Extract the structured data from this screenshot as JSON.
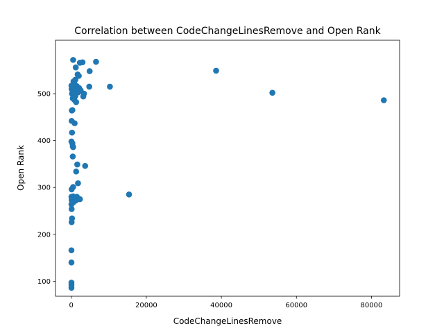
{
  "chart_data": {
    "type": "scatter",
    "title": "Correlation between CodeChangeLinesRemove and Open Rank",
    "xlabel": "CodeChangeLinesRemove",
    "ylabel": "Open Rank",
    "xlim": [
      -4200,
      87500
    ],
    "ylim": [
      68,
      614
    ],
    "xticks": [
      0,
      20000,
      40000,
      60000,
      80000
    ],
    "yticks": [
      100,
      200,
      300,
      400,
      500
    ],
    "grid": false,
    "marker_color": "#1f77b4",
    "points": [
      {
        "x": 500,
        "y": 572
      },
      {
        "x": 2300,
        "y": 566
      },
      {
        "x": 3000,
        "y": 567
      },
      {
        "x": 6600,
        "y": 568
      },
      {
        "x": 1200,
        "y": 556
      },
      {
        "x": 4900,
        "y": 548
      },
      {
        "x": 38600,
        "y": 549
      },
      {
        "x": 1700,
        "y": 541
      },
      {
        "x": 2000,
        "y": 538
      },
      {
        "x": 1100,
        "y": 530
      },
      {
        "x": 600,
        "y": 526
      },
      {
        "x": 800,
        "y": 523
      },
      {
        "x": 50,
        "y": 517
      },
      {
        "x": 300,
        "y": 515
      },
      {
        "x": 1500,
        "y": 516
      },
      {
        "x": 2100,
        "y": 512
      },
      {
        "x": 4800,
        "y": 515
      },
      {
        "x": 10300,
        "y": 515
      },
      {
        "x": 100,
        "y": 510
      },
      {
        "x": 500,
        "y": 508
      },
      {
        "x": 900,
        "y": 506
      },
      {
        "x": 1300,
        "y": 505
      },
      {
        "x": 1900,
        "y": 503
      },
      {
        "x": 2500,
        "y": 507
      },
      {
        "x": 3400,
        "y": 500
      },
      {
        "x": 200,
        "y": 500
      },
      {
        "x": 700,
        "y": 498
      },
      {
        "x": 1100,
        "y": 495
      },
      {
        "x": 3200,
        "y": 494
      },
      {
        "x": 53600,
        "y": 502
      },
      {
        "x": 400,
        "y": 490
      },
      {
        "x": 800,
        "y": 487
      },
      {
        "x": 1300,
        "y": 482
      },
      {
        "x": 83300,
        "y": 486
      },
      {
        "x": 150,
        "y": 464
      },
      {
        "x": 300,
        "y": 465
      },
      {
        "x": 100,
        "y": 442
      },
      {
        "x": 900,
        "y": 437
      },
      {
        "x": 200,
        "y": 417
      },
      {
        "x": 50,
        "y": 398
      },
      {
        "x": 300,
        "y": 394
      },
      {
        "x": 400,
        "y": 388
      },
      {
        "x": 500,
        "y": 386
      },
      {
        "x": 400,
        "y": 366
      },
      {
        "x": 1600,
        "y": 349
      },
      {
        "x": 3700,
        "y": 346
      },
      {
        "x": 1300,
        "y": 334
      },
      {
        "x": 1800,
        "y": 309
      },
      {
        "x": 500,
        "y": 301
      },
      {
        "x": 100,
        "y": 296
      },
      {
        "x": 15400,
        "y": 285
      },
      {
        "x": 50,
        "y": 280
      },
      {
        "x": 500,
        "y": 281
      },
      {
        "x": 1000,
        "y": 278
      },
      {
        "x": 1500,
        "y": 280
      },
      {
        "x": 2300,
        "y": 275
      },
      {
        "x": 100,
        "y": 273
      },
      {
        "x": 600,
        "y": 270
      },
      {
        "x": 1200,
        "y": 272
      },
      {
        "x": 50,
        "y": 264
      },
      {
        "x": 500,
        "y": 268
      },
      {
        "x": 100,
        "y": 254
      },
      {
        "x": 200,
        "y": 234
      },
      {
        "x": 100,
        "y": 226
      },
      {
        "x": 50,
        "y": 166
      },
      {
        "x": 50,
        "y": 140
      },
      {
        "x": 50,
        "y": 97
      },
      {
        "x": 50,
        "y": 92
      },
      {
        "x": 50,
        "y": 86
      }
    ]
  }
}
